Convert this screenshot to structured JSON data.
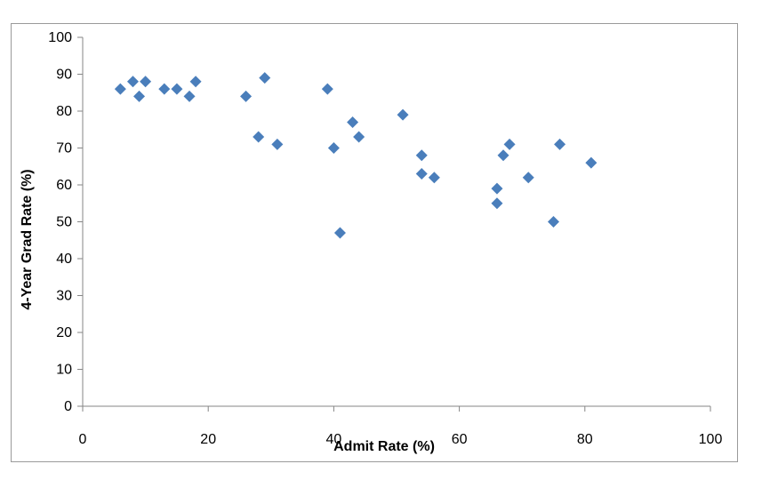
{
  "chart_data": {
    "type": "scatter",
    "title": "",
    "xlabel": "Admit Rate (%)",
    "ylabel": "4-Year Grad Rate (%)",
    "xlim": [
      0,
      100
    ],
    "ylim": [
      0,
      100
    ],
    "x_ticks": [
      0,
      20,
      40,
      60,
      80,
      100
    ],
    "y_ticks": [
      0,
      10,
      20,
      30,
      40,
      50,
      60,
      70,
      80,
      90,
      100
    ],
    "grid": false,
    "legend": "none",
    "marker": "diamond",
    "marker_color": "#4a7ebb",
    "points": [
      {
        "x": 6,
        "y": 86
      },
      {
        "x": 8,
        "y": 88
      },
      {
        "x": 9,
        "y": 84
      },
      {
        "x": 10,
        "y": 88
      },
      {
        "x": 13,
        "y": 86
      },
      {
        "x": 15,
        "y": 86
      },
      {
        "x": 17,
        "y": 84
      },
      {
        "x": 18,
        "y": 88
      },
      {
        "x": 26,
        "y": 84
      },
      {
        "x": 28,
        "y": 73
      },
      {
        "x": 29,
        "y": 89
      },
      {
        "x": 31,
        "y": 71
      },
      {
        "x": 39,
        "y": 86
      },
      {
        "x": 40,
        "y": 70
      },
      {
        "x": 41,
        "y": 47
      },
      {
        "x": 43,
        "y": 77
      },
      {
        "x": 44,
        "y": 73
      },
      {
        "x": 51,
        "y": 79
      },
      {
        "x": 54,
        "y": 68
      },
      {
        "x": 54,
        "y": 63
      },
      {
        "x": 56,
        "y": 62
      },
      {
        "x": 66,
        "y": 59
      },
      {
        "x": 66,
        "y": 55
      },
      {
        "x": 67,
        "y": 68
      },
      {
        "x": 68,
        "y": 71
      },
      {
        "x": 71,
        "y": 62
      },
      {
        "x": 75,
        "y": 50
      },
      {
        "x": 76,
        "y": 71
      },
      {
        "x": 81,
        "y": 66
      }
    ]
  }
}
